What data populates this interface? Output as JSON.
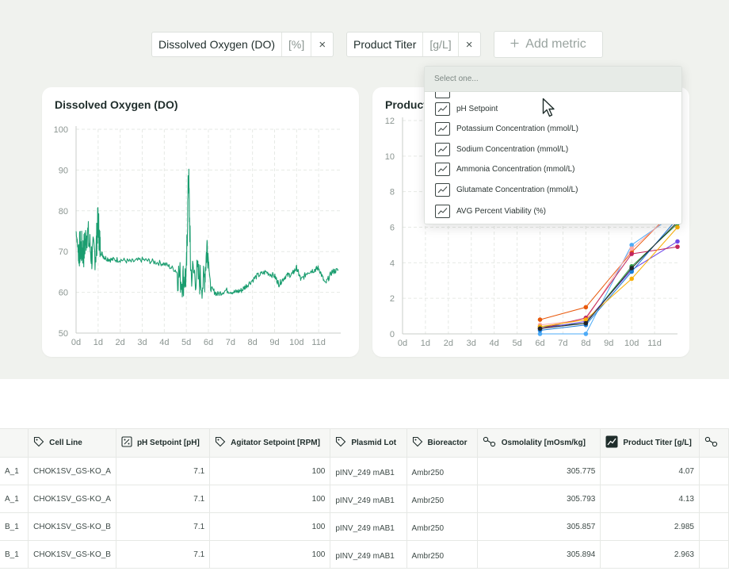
{
  "filters": [
    {
      "name": "Dissolved Oxygen (DO)",
      "unit": "[%]",
      "close": "×"
    },
    {
      "name": "Product Titer",
      "unit": "[g/L]",
      "close": "×"
    }
  ],
  "add_metric": {
    "icon": "plus-icon",
    "label": "Add metric"
  },
  "dropdown": {
    "placeholder": "Select one...",
    "items": [
      {
        "label": "pH Setpoint",
        "icon": "trend-chart-icon"
      },
      {
        "label": "Potassium Concentration (mmol/L)",
        "icon": "trend-chart-icon"
      },
      {
        "label": "Sodium Concentration (mmol/L)",
        "icon": "trend-chart-icon"
      },
      {
        "label": "Ammonia Concentration (mmol/L)",
        "icon": "trend-chart-icon"
      },
      {
        "label": "Glutamate Concentration (mmol/L)",
        "icon": "trend-chart-icon"
      },
      {
        "label": "AVG Percent Viability (%)",
        "icon": "trend-chart-icon"
      }
    ]
  },
  "chart_data": [
    {
      "type": "line",
      "title": "Dissolved Oxygen (DO)",
      "xlabel": "",
      "ylabel": "",
      "x_ticks": [
        "0d",
        "1d",
        "2d",
        "3d",
        "4d",
        "5d",
        "6d",
        "7d",
        "8d",
        "9d",
        "10d",
        "11d"
      ],
      "y_ticks": [
        50,
        60,
        70,
        80,
        90,
        100
      ],
      "xlim": [
        0,
        12
      ],
      "ylim": [
        50,
        100
      ],
      "grid": true,
      "color": "#1a9d6f",
      "series": [
        {
          "x": [
            0,
            0.1,
            0.2,
            0.35,
            0.5,
            0.7,
            0.9,
            1.0,
            1.1,
            1.3,
            1.6,
            2.0,
            2.5,
            3.0,
            3.5,
            4.0,
            4.5,
            4.8,
            5.0,
            5.1,
            5.2,
            5.5,
            5.8,
            5.95,
            6.1,
            6.4,
            6.8,
            7.2,
            7.5,
            7.8,
            8.2,
            8.6,
            9.0,
            9.2,
            9.5,
            9.8,
            10.0,
            10.2,
            10.5,
            10.8,
            11.0,
            11.3,
            11.6,
            11.9
          ],
          "y": [
            75,
            70,
            71,
            70,
            75,
            69,
            70,
            78,
            70,
            68.5,
            68,
            68,
            67.5,
            68,
            67.5,
            67,
            65.5,
            63,
            64,
            90,
            65,
            64,
            62,
            72,
            61,
            59.5,
            60.5,
            60,
            60.5,
            62,
            64,
            65,
            64,
            62,
            64,
            64.5,
            66,
            63,
            65,
            65.5,
            66,
            62,
            65,
            65.5
          ]
        }
      ]
    },
    {
      "type": "line",
      "title": "Product Titer",
      "xlabel": "",
      "ylabel": "",
      "x_ticks": [
        "0d",
        "1d",
        "2d",
        "3d",
        "4d",
        "5d",
        "6d",
        "7d",
        "8d",
        "9d",
        "10d",
        "11d"
      ],
      "y_ticks": [
        0,
        2,
        4,
        6,
        8,
        10,
        12
      ],
      "xlim": [
        0,
        12
      ],
      "ylim": [
        0,
        12
      ],
      "grid": true,
      "series": [
        {
          "color": "#e8590c",
          "x": [
            6,
            8,
            10,
            12
          ],
          "y": [
            0.8,
            1.5,
            4.6,
            7.2
          ]
        },
        {
          "color": "#4dabf7",
          "x": [
            6,
            8,
            10,
            12
          ],
          "y": [
            0.0,
            0.0,
            5.0,
            6.8
          ]
        },
        {
          "color": "#ffa8a8",
          "x": [
            6,
            8,
            10,
            12
          ],
          "y": [
            0.5,
            0.8,
            4.8,
            7.0
          ]
        },
        {
          "color": "#2f9e44",
          "x": [
            6,
            8,
            10,
            12
          ],
          "y": [
            0.4,
            0.6,
            3.8,
            6.2
          ]
        },
        {
          "color": "#7048e8",
          "x": [
            6,
            8,
            10,
            12
          ],
          "y": [
            0.3,
            0.7,
            3.6,
            5.2
          ]
        },
        {
          "color": "#c2255c",
          "x": [
            6,
            8,
            10,
            12
          ],
          "y": [
            0.3,
            0.9,
            4.5,
            4.9
          ]
        },
        {
          "color": "#1c7ed6",
          "x": [
            6,
            8,
            10,
            12
          ],
          "y": [
            0.2,
            0.5,
            3.5,
            6.5
          ]
        },
        {
          "color": "#fab005",
          "x": [
            6,
            8,
            10,
            12
          ],
          "y": [
            0.4,
            0.8,
            3.1,
            6.0
          ]
        },
        {
          "color": "#212529",
          "x": [
            6,
            8,
            10,
            12
          ],
          "y": [
            0.3,
            0.6,
            3.7,
            6.3
          ]
        }
      ]
    }
  ],
  "table": {
    "columns": [
      {
        "label": "",
        "icon": ""
      },
      {
        "label": "Cell Line",
        "icon": "tag-icon"
      },
      {
        "label": "pH Setpoint [pH]",
        "icon": "percent-box-icon"
      },
      {
        "label": "Agitator Setpoint [RPM]",
        "icon": "tag-icon"
      },
      {
        "label": "Plasmid Lot",
        "icon": "tag-icon"
      },
      {
        "label": "Bioreactor",
        "icon": "tag-icon"
      },
      {
        "label": "Osmolality [mOsm/kg]",
        "icon": "molecule-icon"
      },
      {
        "label": "Product Titer [g/L]",
        "icon": "trend-chart-icon"
      },
      {
        "label": "",
        "icon": "molecule-icon"
      }
    ],
    "rows": [
      [
        "A_1",
        "CHOK1SV_GS-KO_A",
        "7.1",
        "100",
        "pINV_249 mAB1",
        "Ambr250",
        "305.775",
        "4.07",
        ""
      ],
      [
        "A_1",
        "CHOK1SV_GS-KO_A",
        "7.1",
        "100",
        "pINV_249 mAB1",
        "Ambr250",
        "305.793",
        "4.13",
        ""
      ],
      [
        "B_1",
        "CHOK1SV_GS-KO_B",
        "7.1",
        "100",
        "pINV_249 mAB1",
        "Ambr250",
        "305.857",
        "2.985",
        ""
      ],
      [
        "B_1",
        "CHOK1SV_GS-KO_B",
        "7.1",
        "100",
        "pINV_249 mAB1",
        "Ambr250",
        "305.894",
        "2.963",
        ""
      ]
    ]
  }
}
